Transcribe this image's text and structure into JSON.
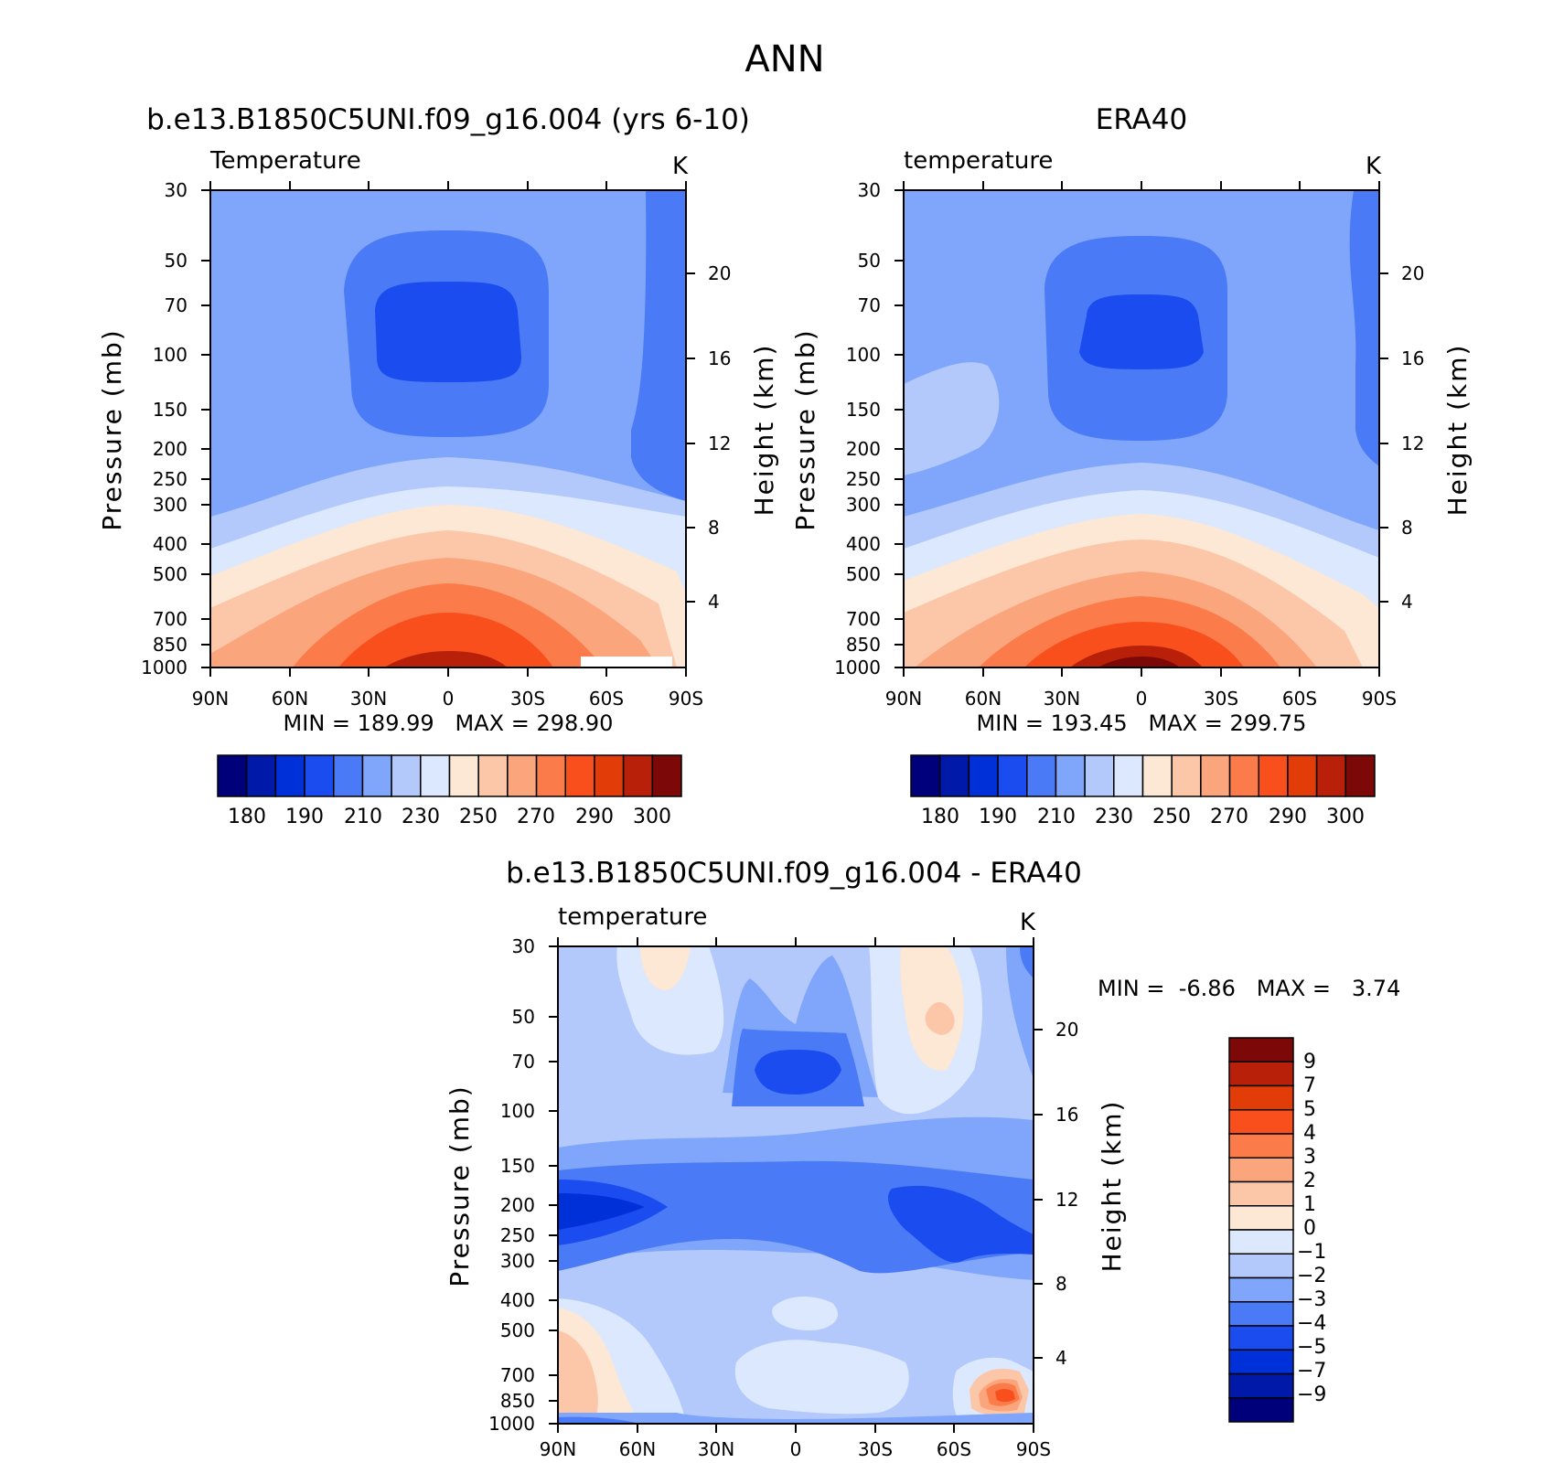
{
  "figure": {
    "title": "ANN"
  },
  "panels": [
    {
      "title": "b.e13.B1850C5UNI.f09_g16.004 (yrs 6-10)",
      "variable_label": "Temperature",
      "units_label": "K",
      "ylabel_left": "Pressure (mb)",
      "ylabel_right": "Height (km)",
      "minmax_text": "MIN = 189.99   MAX = 298.90"
    },
    {
      "title": "ERA40",
      "variable_label": "temperature",
      "units_label": "K",
      "ylabel_left": "Pressure (mb)",
      "ylabel_right": "Height (km)",
      "minmax_text": "MIN = 193.45   MAX = 299.75"
    },
    {
      "title": "b.e13.B1850C5UNI.f09_g16.004 - ERA40",
      "variable_label": "temperature",
      "units_label": "K",
      "ylabel_left": "Pressure (mb)",
      "ylabel_right": "Height (km)",
      "minmax_text": "MIN =  -6.86   MAX =   3.74"
    }
  ],
  "colorbars": {
    "absolute": {
      "colors": [
        "#00007a",
        "#0019a8",
        "#0030d8",
        "#1a4cf0",
        "#4a7af5",
        "#7fa6fa",
        "#b3c9fc",
        "#dce8fd",
        "#fde7d5",
        "#fcc6a9",
        "#fba57c",
        "#fb7c4a",
        "#f94f1c",
        "#e23d09",
        "#b8200a",
        "#7c0808"
      ],
      "labels": [
        "180",
        "190",
        "210",
        "230",
        "250",
        "270",
        "290",
        "300"
      ]
    },
    "difference": {
      "colors": [
        "#7c0808",
        "#b8200a",
        "#e23d09",
        "#f94f1c",
        "#fb7c4a",
        "#fba57c",
        "#fcc6a9",
        "#fde7d5",
        "#dce8fd",
        "#b3c9fc",
        "#7fa6fa",
        "#4a7af5",
        "#1a4cf0",
        "#0030d8",
        "#0019a8",
        "#00007a"
      ],
      "labels": [
        "9",
        "7",
        "5",
        "4",
        "3",
        "2",
        "1",
        "0",
        "−1",
        "−2",
        "−3",
        "−4",
        "−5",
        "−7",
        "−9"
      ]
    }
  },
  "chart_data": [
    {
      "type": "heatmap",
      "title": "b.e13.B1850C5UNI.f09_g16.004 (yrs 6-10)",
      "xlabel": "",
      "ylabel": "Pressure (mb)",
      "ylabel_right": "Height (km)",
      "x_ticks": [
        "90N",
        "60N",
        "30N",
        "0",
        "30S",
        "60S",
        "90S"
      ],
      "y_ticks": [
        "30",
        "50",
        "70",
        "100",
        "150",
        "200",
        "250",
        "300",
        "400",
        "500",
        "700",
        "850",
        "1000"
      ],
      "y_right_ticks": [
        "20",
        "16",
        "12",
        "8",
        "4"
      ],
      "x_range": [
        "90N",
        "90S"
      ],
      "y_range_mb": [
        1000,
        30
      ],
      "min": 189.99,
      "max": 298.9,
      "units": "K"
    },
    {
      "type": "heatmap",
      "title": "ERA40",
      "xlabel": "",
      "ylabel": "Pressure (mb)",
      "ylabel_right": "Height (km)",
      "x_ticks": [
        "90N",
        "60N",
        "30N",
        "0",
        "30S",
        "60S",
        "90S"
      ],
      "y_ticks": [
        "30",
        "50",
        "70",
        "100",
        "150",
        "200",
        "250",
        "300",
        "400",
        "500",
        "700",
        "850",
        "1000"
      ],
      "y_right_ticks": [
        "20",
        "16",
        "12",
        "8",
        "4"
      ],
      "x_range": [
        "90N",
        "90S"
      ],
      "y_range_mb": [
        1000,
        30
      ],
      "min": 193.45,
      "max": 299.75,
      "units": "K"
    },
    {
      "type": "heatmap",
      "title": "b.e13.B1850C5UNI.f09_g16.004 - ERA40",
      "xlabel": "",
      "ylabel": "Pressure (mb)",
      "ylabel_right": "Height (km)",
      "x_ticks": [
        "90N",
        "60N",
        "30N",
        "0",
        "30S",
        "60S",
        "90S"
      ],
      "y_ticks": [
        "30",
        "50",
        "70",
        "100",
        "150",
        "200",
        "250",
        "300",
        "400",
        "500",
        "700",
        "850",
        "1000"
      ],
      "y_right_ticks": [
        "20",
        "16",
        "12",
        "8",
        "4"
      ],
      "x_range": [
        "90N",
        "90S"
      ],
      "y_range_mb": [
        1000,
        30
      ],
      "min": -6.86,
      "max": 3.74,
      "units": "K"
    }
  ]
}
